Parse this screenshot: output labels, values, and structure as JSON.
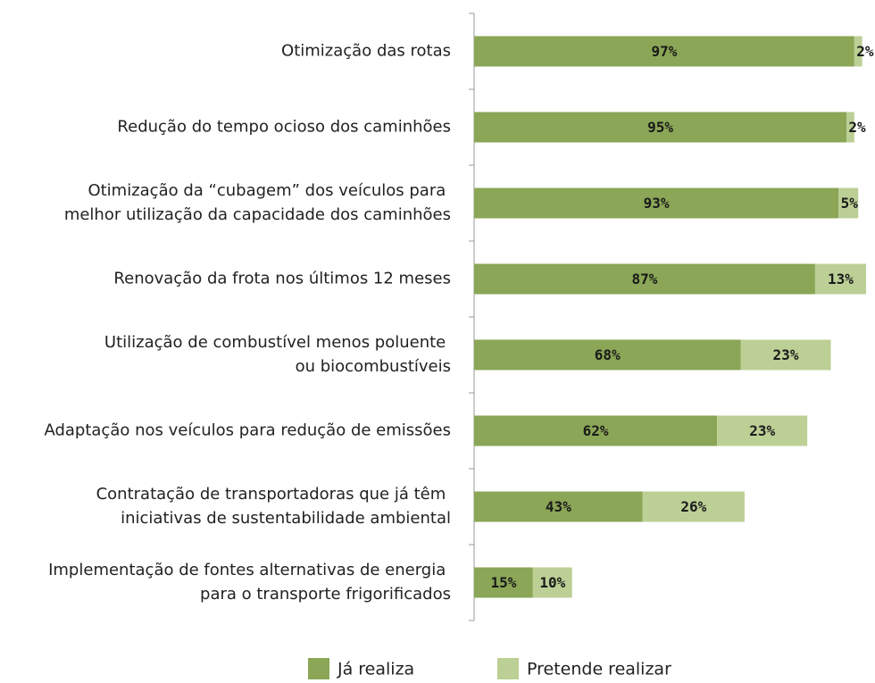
{
  "chart_data": {
    "type": "stacked-bar-horizontal",
    "categories": [
      "Otimização das rotas",
      "Redução do tempo ocioso dos caminhões",
      "Otimização da “cubagem” dos veículos para\nmelhor utilização da capacidade dos caminhões",
      "Renovação da frota nos últimos 12 meses",
      "Utilização de combustível menos poluente\nou biocombustíveis",
      "Adaptação nos veículos para redução de emissões",
      "Contratação de transportadoras que já têm\niniciativas de sustentabilidade ambiental",
      "Implementação de fontes alternativas de energia\npara o transporte frigorificados"
    ],
    "series": [
      {
        "name": "Já realiza",
        "color": "#8aa656",
        "values": [
          97,
          95,
          93,
          87,
          68,
          62,
          43,
          15
        ],
        "value_labels": [
          "97%",
          "95%",
          "93%",
          "87%",
          "68%",
          "62%",
          "43%",
          "15%"
        ]
      },
      {
        "name": "Pretende realizar",
        "color": "#bccf95",
        "values": [
          2,
          2,
          5,
          13,
          23,
          23,
          26,
          10
        ],
        "value_labels": [
          "2%",
          "2%",
          "5%",
          "13%",
          "23%",
          "23%",
          "26%",
          "10%"
        ]
      }
    ],
    "xlim": [
      0,
      100
    ]
  }
}
